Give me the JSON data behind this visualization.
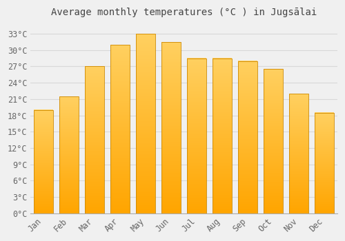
{
  "title": "Average monthly temperatures (°C ) in Jugsālai",
  "months": [
    "Jan",
    "Feb",
    "Mar",
    "Apr",
    "May",
    "Jun",
    "Jul",
    "Aug",
    "Sep",
    "Oct",
    "Nov",
    "Dec"
  ],
  "values": [
    19.0,
    21.5,
    27.0,
    31.0,
    33.0,
    31.5,
    28.5,
    28.5,
    28.0,
    26.5,
    22.0,
    18.5
  ],
  "bar_color_bottom": "#FFA500",
  "bar_color_top": "#FFD060",
  "bar_edge_color": "#CC8800",
  "ylim": [
    0,
    35
  ],
  "yticks": [
    0,
    3,
    6,
    9,
    12,
    15,
    18,
    21,
    24,
    27,
    30,
    33
  ],
  "ytick_labels": [
    "0°C",
    "3°C",
    "6°C",
    "9°C",
    "12°C",
    "15°C",
    "18°C",
    "21°C",
    "24°C",
    "27°C",
    "30°C",
    "33°C"
  ],
  "background_color": "#f0f0f0",
  "plot_background_color": "#f0f0f0",
  "grid_color": "#d8d8d8",
  "title_fontsize": 10,
  "tick_fontsize": 8.5,
  "tick_color": "#666666",
  "title_color": "#444444"
}
